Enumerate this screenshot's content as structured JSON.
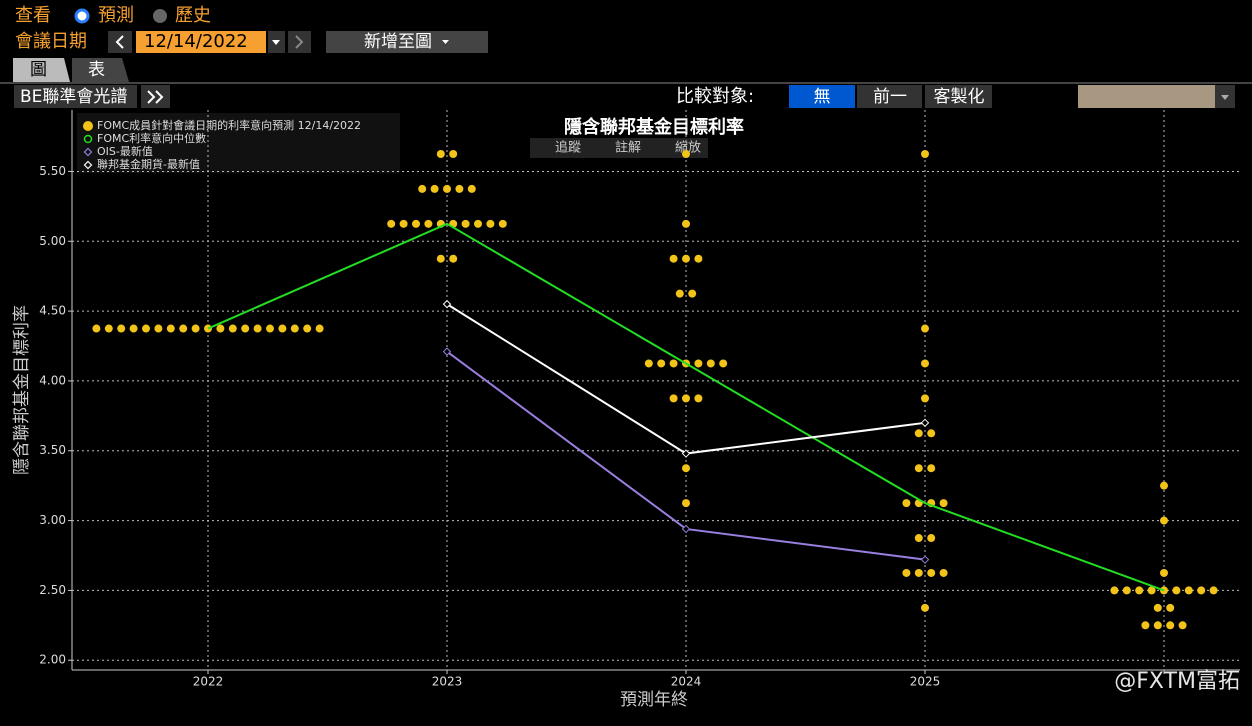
{
  "toolbar": {
    "view_label": "查看",
    "view_options": [
      "預測",
      "歷史"
    ],
    "date_label": "會議日期",
    "date": "12/14/2022",
    "add_button": "新增至圖",
    "tabs": [
      "圖",
      "表"
    ],
    "source_button": "BE聯準會光譜",
    "compare_label": "比較對象:",
    "compare_options": [
      "無",
      "前一",
      "客製化"
    ]
  },
  "chart_tools": [
    "追蹤",
    "註解",
    "縮放"
  ],
  "watermark": "@FXTM富拓",
  "chart_data": {
    "type": "dot-plot",
    "title": "隱含聯邦基金目標利率",
    "y_label": "隱含聯邦基金目標利率",
    "x_label": "預測年終",
    "categories": [
      "2022",
      "2023",
      "2024",
      "2025",
      null
    ],
    "ylim": [
      1.93,
      5.94
    ],
    "yticks": [
      {
        "value": 2,
        "label": "2.00"
      },
      {
        "value": 2.5,
        "label": "2.50"
      },
      {
        "value": 3,
        "label": "3.00"
      },
      {
        "value": 3.5,
        "label": "3.50"
      },
      {
        "value": 4,
        "label": "4.00"
      },
      {
        "value": 4.5,
        "label": "4.50"
      },
      {
        "value": 5,
        "label": "5.00"
      },
      {
        "value": 5.5,
        "label": "5.50"
      }
    ],
    "grid": true,
    "series": [
      {
        "name": "FOMC成員針對會議日期的利率意向預測 12/14/2022",
        "color": "#f2c318",
        "kind": "dots",
        "values": [
          [
            4.375,
            4.375,
            4.375,
            4.375,
            4.375,
            4.375,
            4.375,
            4.375,
            4.375,
            4.375,
            4.375,
            4.375,
            4.375,
            4.375,
            4.375,
            4.375,
            4.375,
            4.375,
            4.375
          ],
          [
            5.625,
            5.625,
            5.375,
            5.375,
            5.375,
            5.375,
            5.375,
            5.125,
            5.125,
            5.125,
            5.125,
            5.125,
            5.125,
            5.125,
            5.125,
            5.125,
            5.125,
            4.875,
            4.875
          ],
          [
            5.625,
            5.125,
            4.875,
            4.875,
            4.875,
            4.625,
            4.625,
            4.125,
            4.125,
            4.125,
            4.125,
            4.125,
            4.125,
            4.125,
            3.875,
            3.875,
            3.875,
            3.375,
            3.125
          ],
          [
            5.625,
            4.375,
            4.125,
            3.875,
            3.625,
            3.625,
            3.375,
            3.375,
            3.125,
            3.125,
            3.125,
            3.125,
            2.875,
            2.875,
            2.625,
            2.625,
            2.625,
            2.625,
            2.375
          ],
          [
            3.25,
            3.0,
            2.625,
            2.5,
            2.5,
            2.5,
            2.5,
            2.5,
            2.5,
            2.5,
            2.5,
            2.5,
            2.375,
            2.375,
            2.25,
            2.25,
            2.25,
            2.25
          ]
        ]
      },
      {
        "name": "FOMC利率意向中位數",
        "color": "#22dd22",
        "kind": "line",
        "values": [
          4.375,
          5.125,
          4.125,
          3.125,
          2.5
        ]
      },
      {
        "name": "OIS-最新值",
        "color": "#9a7fe0",
        "kind": "line",
        "values": [
          null,
          4.21,
          2.94,
          2.72,
          null
        ]
      },
      {
        "name": "聯邦基金期貨-最新值",
        "color": "#ffffff",
        "kind": "line",
        "values": [
          null,
          4.55,
          3.48,
          3.7,
          null
        ]
      }
    ]
  }
}
